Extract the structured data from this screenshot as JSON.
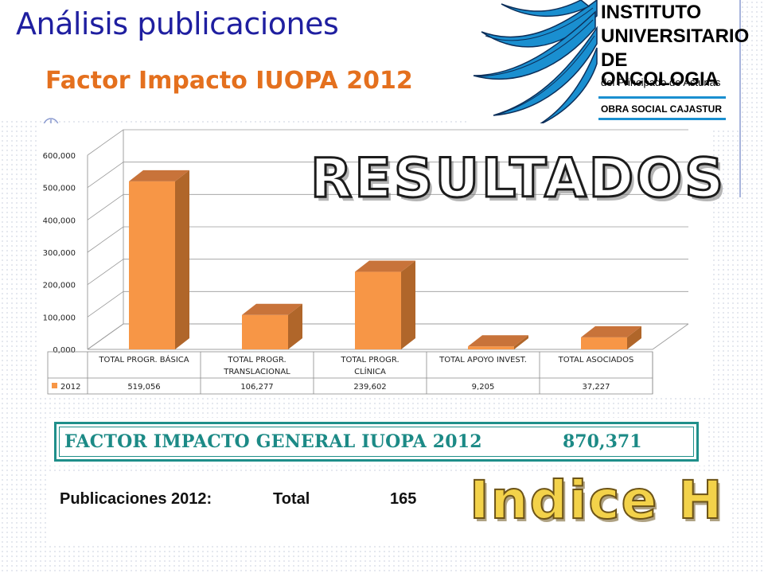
{
  "slide": {
    "title": "Análisis publicaciones",
    "subtitle": "Factor Impacto IUOPA 2012"
  },
  "logo": {
    "line1": "INSTITUTO",
    "line2": "UNIVERSITARIO",
    "line3": "DE  ONCOLOGIA",
    "line4": "del Principado de Asturias",
    "line5": "OBRA  SOCIAL  CAJASTUR",
    "icon": "palm-leaf-logo-icon"
  },
  "overlay": {
    "resultados": "RESULTADOS",
    "indice_h": "Indice H"
  },
  "factor_general": {
    "label": "FACTOR IMPACTO GENERAL IUOPA 2012",
    "value": "870,371"
  },
  "publicaciones": {
    "label": "Publicaciones 2012:",
    "total_label": "Total",
    "total_value": "165"
  },
  "colors": {
    "title": "#1f1fa0",
    "subtitle": "#e4701e",
    "bar_front": "#f79646",
    "bar_side": "#b0662a",
    "factor": "#1c8a86"
  },
  "chart_data": {
    "type": "bar",
    "categories": [
      "TOTAL PROGR. BÁSICA",
      "TOTAL PROGR. TRANSLACIONAL",
      "TOTAL PROGR. CLÍNICA",
      "TOTAL APOYO INVEST.",
      "TOTAL ASOCIADOS"
    ],
    "category_lines": [
      [
        "TOTAL PROGR. BÁSICA"
      ],
      [
        "TOTAL PROGR.",
        "TRANSLACIONAL"
      ],
      [
        "TOTAL PROGR.",
        "CLÍNICA"
      ],
      [
        "TOTAL APOYO INVEST."
      ],
      [
        "TOTAL ASOCIADOS"
      ]
    ],
    "series": [
      {
        "name": "2012",
        "values": [
          519.056,
          106.277,
          239.602,
          9.205,
          37.227
        ]
      }
    ],
    "value_labels": [
      "519,056",
      "106,277",
      "239,602",
      "9,205",
      "37,227"
    ],
    "yticks": [
      "0,000",
      "100,000",
      "200,000",
      "300,000",
      "400,000",
      "500,000",
      "600,000"
    ],
    "ylim": [
      0,
      600
    ],
    "style": "3d-column",
    "legend": "data-table"
  }
}
